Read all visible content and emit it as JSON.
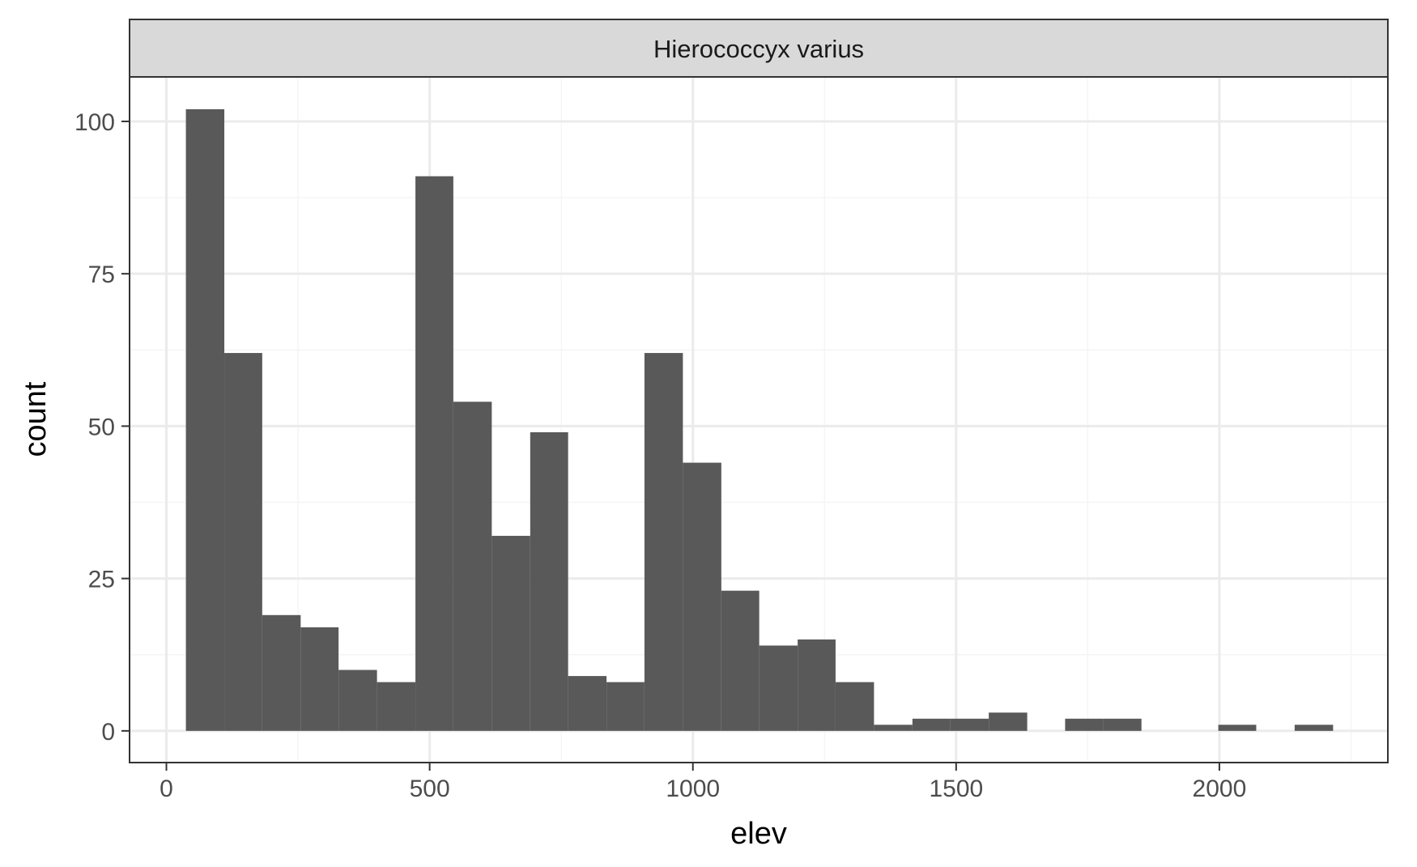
{
  "chart_data": {
    "type": "bar",
    "facet_label": "Hierococcyx varius",
    "xlabel": "elev",
    "ylabel": "count",
    "bin_width": 72.6,
    "bins": [
      {
        "x_start": 37,
        "x_end": 110,
        "count": 102
      },
      {
        "x_start": 110,
        "x_end": 182,
        "count": 62
      },
      {
        "x_start": 182,
        "x_end": 255,
        "count": 19
      },
      {
        "x_start": 255,
        "x_end": 327,
        "count": 17
      },
      {
        "x_start": 327,
        "x_end": 400,
        "count": 10
      },
      {
        "x_start": 400,
        "x_end": 473,
        "count": 8
      },
      {
        "x_start": 473,
        "x_end": 545,
        "count": 91
      },
      {
        "x_start": 545,
        "x_end": 618,
        "count": 54
      },
      {
        "x_start": 618,
        "x_end": 691,
        "count": 32
      },
      {
        "x_start": 691,
        "x_end": 763,
        "count": 49
      },
      {
        "x_start": 763,
        "x_end": 836,
        "count": 9
      },
      {
        "x_start": 836,
        "x_end": 908,
        "count": 8
      },
      {
        "x_start": 908,
        "x_end": 981,
        "count": 62
      },
      {
        "x_start": 981,
        "x_end": 1054,
        "count": 44
      },
      {
        "x_start": 1054,
        "x_end": 1126,
        "count": 23
      },
      {
        "x_start": 1126,
        "x_end": 1199,
        "count": 14
      },
      {
        "x_start": 1199,
        "x_end": 1271,
        "count": 15
      },
      {
        "x_start": 1271,
        "x_end": 1344,
        "count": 8
      },
      {
        "x_start": 1344,
        "x_end": 1417,
        "count": 1
      },
      {
        "x_start": 1417,
        "x_end": 1489,
        "count": 2
      },
      {
        "x_start": 1489,
        "x_end": 1562,
        "count": 2
      },
      {
        "x_start": 1562,
        "x_end": 1635,
        "count": 3
      },
      {
        "x_start": 1635,
        "x_end": 1707,
        "count": 0
      },
      {
        "x_start": 1707,
        "x_end": 1780,
        "count": 2
      },
      {
        "x_start": 1780,
        "x_end": 1852,
        "count": 2
      },
      {
        "x_start": 1852,
        "x_end": 1925,
        "count": 0
      },
      {
        "x_start": 1925,
        "x_end": 1998,
        "count": 0
      },
      {
        "x_start": 1998,
        "x_end": 2070,
        "count": 1
      },
      {
        "x_start": 2070,
        "x_end": 2143,
        "count": 0
      },
      {
        "x_start": 2143,
        "x_end": 2216,
        "count": 1
      }
    ],
    "xlim": [
      -70,
      2320
    ],
    "ylim": [
      -5.2,
      107.3
    ],
    "x_ticks": [
      0,
      500,
      1000,
      1500,
      2000
    ],
    "x_minor_ticks": [
      250,
      750,
      1250,
      1750,
      2250
    ],
    "y_ticks": [
      0,
      25,
      50,
      75,
      100
    ],
    "y_minor_ticks": [
      12.5,
      37.5,
      62.5,
      87.5
    ],
    "grid": true,
    "colors": {
      "bar_fill": "#595959",
      "grid_major": "#ebebeb",
      "grid_minor": "#f5f5f5",
      "strip_fill": "#d9d9d9",
      "border": "#333333"
    }
  }
}
